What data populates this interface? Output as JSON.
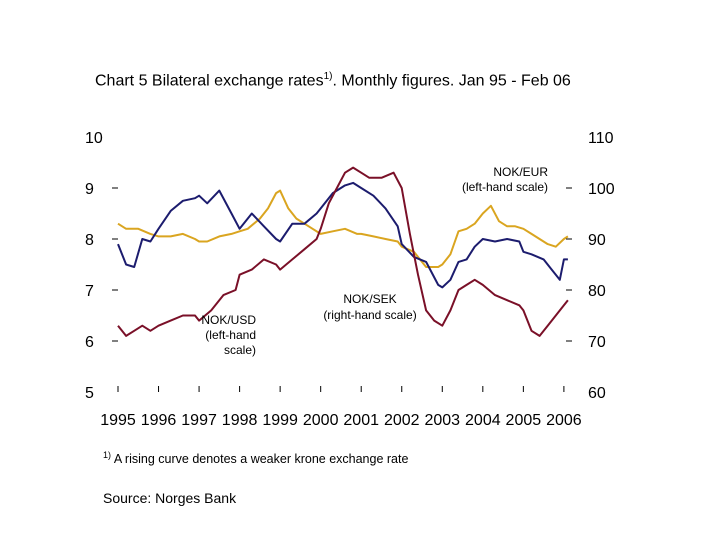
{
  "header": {
    "title_pre": "Chart 5 Bilateral exchange rates",
    "title_sup": "1)",
    "title_post": ". Monthly figures. Jan 95 - Feb 06"
  },
  "footnote": {
    "marker": "1)",
    "text": "A rising curve denotes a weaker krone exchange rate"
  },
  "source": "Source: Norges Bank",
  "chart_data": {
    "type": "line",
    "title": "Chart 5 Bilateral exchange rates1). Monthly figures. Jan 95 - Feb 06",
    "xlabel": "",
    "xlim": [
      1995.0,
      2006.2
    ],
    "x_ticks": [
      "1995",
      "1996",
      "1997",
      "1998",
      "1999",
      "2000",
      "2001",
      "2002",
      "2003",
      "2004",
      "2005",
      "2006"
    ],
    "y_left": {
      "ylim": [
        5,
        10
      ],
      "ticks": [
        "5",
        "6",
        "7",
        "8",
        "9",
        "10"
      ]
    },
    "y_right": {
      "ylim": [
        60,
        110
      ],
      "ticks": [
        "60",
        "70",
        "80",
        "90",
        "100",
        "110"
      ]
    },
    "grid": false,
    "annotations": [
      {
        "id": "eur",
        "lines": [
          "NOK/EUR",
          "(left-hand scale)"
        ]
      },
      {
        "id": "usd",
        "lines": [
          "NOK/USD",
          "(left-hand",
          "scale)"
        ]
      },
      {
        "id": "sek",
        "lines": [
          "NOK/SEK",
          "(right-hand scale)"
        ]
      }
    ],
    "series": [
      {
        "name": "NOK/EUR",
        "axis": "left",
        "color": "#DAA520",
        "x": [
          1995.0,
          1995.2,
          1995.5,
          1995.8,
          1996.0,
          1996.3,
          1996.6,
          1996.9,
          1997.0,
          1997.2,
          1997.5,
          1997.8,
          1998.0,
          1998.2,
          1998.5,
          1998.7,
          1998.9,
          1999.0,
          1999.2,
          1999.4,
          1999.6,
          1999.8,
          2000.0,
          2000.3,
          2000.6,
          2000.9,
          2001.0,
          2001.3,
          2001.6,
          2001.9,
          2002.0,
          2002.3,
          2002.6,
          2002.9,
          2003.0,
          2003.2,
          2003.4,
          2003.6,
          2003.8,
          2004.0,
          2004.2,
          2004.4,
          2004.6,
          2004.8,
          2005.0,
          2005.2,
          2005.4,
          2005.6,
          2005.8,
          2006.0,
          2006.1
        ],
        "y": [
          8.3,
          8.2,
          8.2,
          8.1,
          8.05,
          8.05,
          8.1,
          8.0,
          7.95,
          7.95,
          8.05,
          8.1,
          8.15,
          8.2,
          8.4,
          8.6,
          8.9,
          8.95,
          8.6,
          8.4,
          8.3,
          8.2,
          8.1,
          8.15,
          8.2,
          8.1,
          8.1,
          8.05,
          8.0,
          7.95,
          7.85,
          7.75,
          7.45,
          7.45,
          7.5,
          7.7,
          8.15,
          8.2,
          8.3,
          8.5,
          8.65,
          8.35,
          8.25,
          8.25,
          8.2,
          8.1,
          8.0,
          7.9,
          7.85,
          8.0,
          8.05
        ]
      },
      {
        "name": "NOK/USD",
        "axis": "left",
        "color": "#1C1C6E",
        "x": [
          1995.0,
          1995.2,
          1995.4,
          1995.6,
          1995.8,
          1996.0,
          1996.3,
          1996.6,
          1996.9,
          1997.0,
          1997.2,
          1997.5,
          1997.8,
          1998.0,
          1998.3,
          1998.6,
          1998.9,
          1999.0,
          1999.3,
          1999.6,
          1999.9,
          2000.0,
          2000.3,
          2000.6,
          2000.8,
          2001.0,
          2001.3,
          2001.6,
          2001.9,
          2002.0,
          2002.3,
          2002.6,
          2002.9,
          2003.0,
          2003.2,
          2003.4,
          2003.6,
          2003.8,
          2004.0,
          2004.3,
          2004.6,
          2004.9,
          2005.0,
          2005.2,
          2005.5,
          2005.7,
          2005.9,
          2006.0,
          2006.1
        ],
        "y": [
          7.9,
          7.5,
          7.45,
          8.0,
          7.95,
          8.2,
          8.55,
          8.75,
          8.8,
          8.85,
          8.7,
          8.95,
          8.5,
          8.2,
          8.5,
          8.25,
          8.0,
          7.95,
          8.3,
          8.3,
          8.5,
          8.6,
          8.9,
          9.05,
          9.1,
          9.0,
          8.85,
          8.6,
          8.25,
          7.9,
          7.65,
          7.55,
          7.1,
          7.05,
          7.2,
          7.55,
          7.6,
          7.85,
          8.0,
          7.95,
          8.0,
          7.95,
          7.75,
          7.7,
          7.6,
          7.4,
          7.2,
          7.6,
          7.6
        ]
      },
      {
        "name": "NOK/SEK",
        "axis": "right",
        "color": "#7A1028",
        "x": [
          1995.0,
          1995.2,
          1995.4,
          1995.6,
          1995.8,
          1996.0,
          1996.3,
          1996.6,
          1996.9,
          1997.0,
          1997.3,
          1997.6,
          1997.9,
          1998.0,
          1998.3,
          1998.6,
          1998.9,
          1999.0,
          1999.3,
          1999.6,
          1999.9,
          2000.0,
          2000.2,
          2000.4,
          2000.6,
          2000.8,
          2001.0,
          2001.2,
          2001.5,
          2001.8,
          2002.0,
          2002.2,
          2002.4,
          2002.6,
          2002.8,
          2003.0,
          2003.2,
          2003.4,
          2003.6,
          2003.8,
          2004.0,
          2004.3,
          2004.6,
          2004.9,
          2005.0,
          2005.2,
          2005.4,
          2005.6,
          2005.8,
          2006.0,
          2006.1
        ],
        "y": [
          73,
          71,
          72,
          73,
          72,
          73,
          74,
          75,
          75,
          74,
          76,
          79,
          80,
          83,
          84,
          86,
          85,
          84,
          86,
          88,
          90,
          92,
          97,
          100,
          103,
          104,
          103,
          102,
          102,
          103,
          100,
          91,
          83,
          76,
          74,
          73,
          76,
          80,
          81,
          82,
          81,
          79,
          78,
          77,
          76,
          72,
          71,
          73,
          75,
          77,
          78
        ]
      }
    ]
  }
}
